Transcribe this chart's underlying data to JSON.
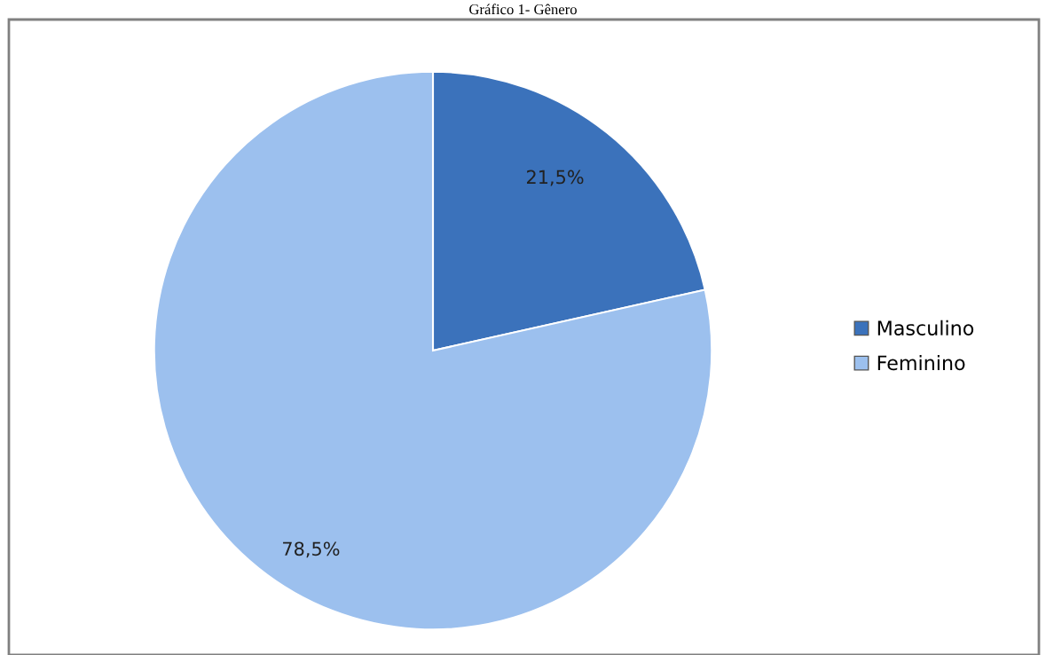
{
  "chart_data": {
    "type": "pie",
    "title": "Gráfico 1- Gênero",
    "categories": [
      "Masculino",
      "Feminino"
    ],
    "values": [
      21.5,
      78.5
    ],
    "colors": [
      "#3b72bb",
      "#9cc0ee"
    ],
    "value_labels": [
      "21,5%",
      "78,5%"
    ],
    "legend": "right"
  }
}
